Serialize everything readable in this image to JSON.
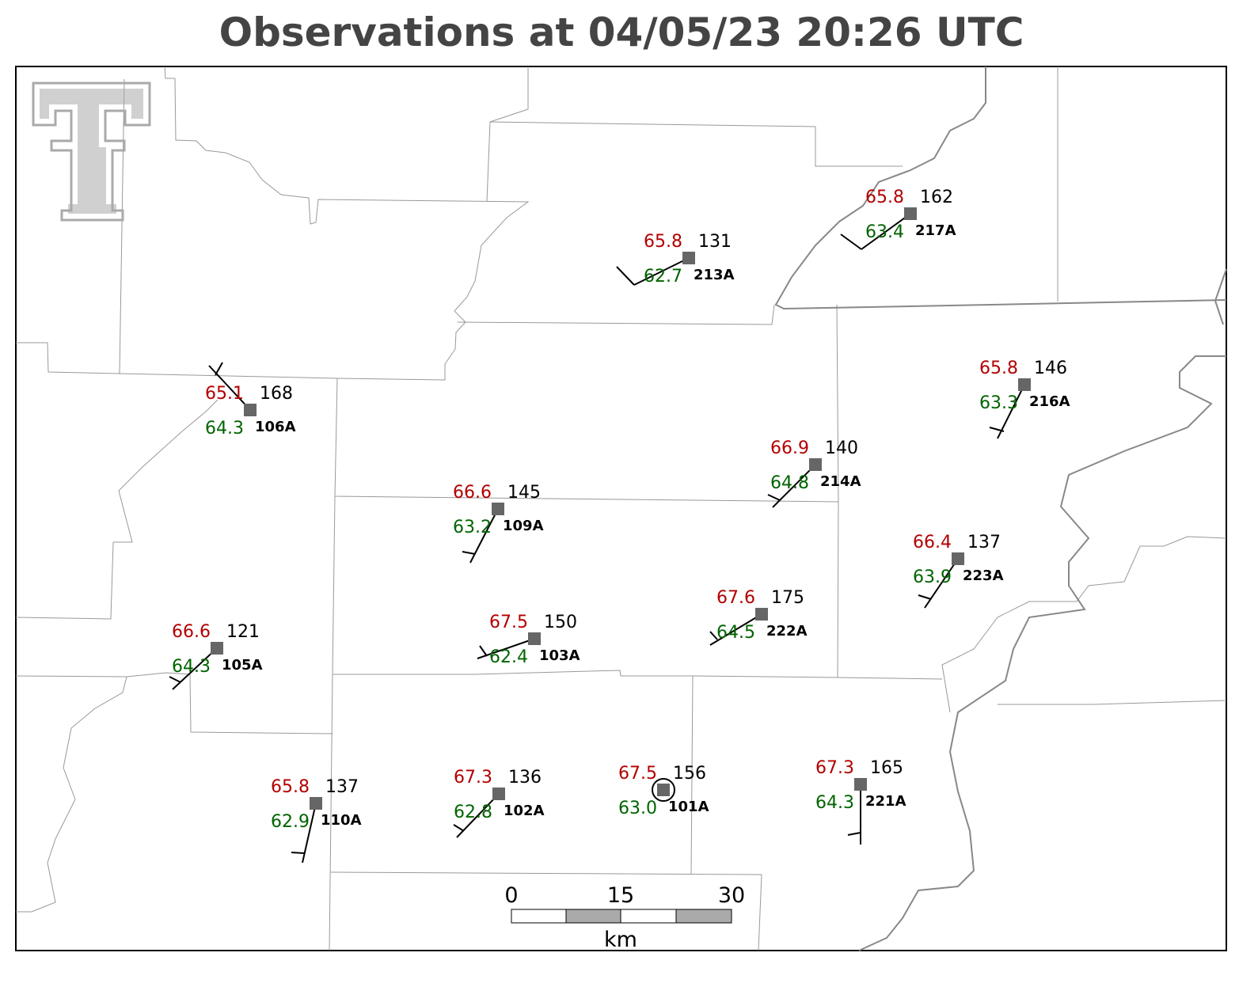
{
  "header": {
    "title": "Observations at 04/05/23 20:26 UTC"
  },
  "stations": [
    {
      "id": "213A",
      "temp": "65.8",
      "dewpoint": "62.7",
      "pressure": "131"
    },
    {
      "id": "217A",
      "temp": "65.8",
      "dewpoint": "63.4",
      "pressure": "162"
    },
    {
      "id": "106A",
      "temp": "65.1",
      "dewpoint": "64.3",
      "pressure": "168"
    },
    {
      "id": "216A",
      "temp": "65.8",
      "dewpoint": "63.3",
      "pressure": "146"
    },
    {
      "id": "214A",
      "temp": "66.9",
      "dewpoint": "64.8",
      "pressure": "140"
    },
    {
      "id": "109A",
      "temp": "66.6",
      "dewpoint": "63.2",
      "pressure": "145"
    },
    {
      "id": "223A",
      "temp": "66.4",
      "dewpoint": "63.9",
      "pressure": "137"
    },
    {
      "id": "222A",
      "temp": "67.6",
      "dewpoint": "64.5",
      "pressure": "175"
    },
    {
      "id": "103A",
      "temp": "67.5",
      "dewpoint": "62.4",
      "pressure": "150"
    },
    {
      "id": "105A",
      "temp": "66.6",
      "dewpoint": "64.3",
      "pressure": "121"
    },
    {
      "id": "110A",
      "temp": "65.8",
      "dewpoint": "62.9",
      "pressure": "137"
    },
    {
      "id": "102A",
      "temp": "67.3",
      "dewpoint": "62.8",
      "pressure": "136"
    },
    {
      "id": "101A",
      "temp": "67.5",
      "dewpoint": "63.0",
      "pressure": "156"
    },
    {
      "id": "221A",
      "temp": "67.3",
      "dewpoint": "64.3",
      "pressure": "165"
    }
  ],
  "scale_bar": {
    "labels": [
      "0",
      "15",
      "30"
    ],
    "unit": "km"
  }
}
